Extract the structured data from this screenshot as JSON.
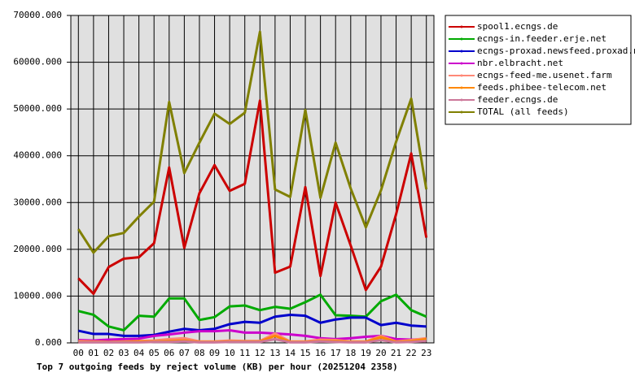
{
  "chart_data": {
    "type": "line",
    "title": "Top 7 outgoing feeds by reject volume (KB) per hour (20251204 2358)",
    "categories": [
      "00",
      "01",
      "02",
      "03",
      "04",
      "05",
      "06",
      "07",
      "08",
      "09",
      "10",
      "11",
      "12",
      "13",
      "14",
      "15",
      "16",
      "17",
      "18",
      "19",
      "20",
      "21",
      "22",
      "23"
    ],
    "ylim": [
      0,
      70000
    ],
    "yticks": [
      {
        "value": 0,
        "label": "0.000"
      },
      {
        "value": 10000,
        "label": "10000.000"
      },
      {
        "value": 20000,
        "label": "20000.000"
      },
      {
        "value": 30000,
        "label": "30000.000"
      },
      {
        "value": 40000,
        "label": "40000.000"
      },
      {
        "value": 50000,
        "label": "50000.000"
      },
      {
        "value": 60000,
        "label": "60000.000"
      },
      {
        "value": 70000,
        "label": "70000.000"
      }
    ],
    "grid": true,
    "series": [
      {
        "name": "spool1.ecngs.de",
        "color": "#cc0000",
        "values": [
          13800,
          10500,
          16200,
          18000,
          18300,
          21300,
          37500,
          20300,
          32000,
          38000,
          32500,
          34000,
          51800,
          15000,
          16300,
          33300,
          14300,
          30000,
          20800,
          11300,
          16300,
          27500,
          40500,
          22500
        ]
      },
      {
        "name": "ecngs-in.feeder.erje.net",
        "color": "#00aa00",
        "values": [
          6800,
          6000,
          3500,
          2700,
          5800,
          5600,
          9500,
          9500,
          4900,
          5500,
          7800,
          8000,
          7000,
          7700,
          7300,
          8700,
          10300,
          5900,
          5800,
          5600,
          8900,
          10300,
          7000,
          5600
        ]
      },
      {
        "name": "ecngs-proxad.newsfeed.proxad.net",
        "color": "#0000cc",
        "values": [
          2600,
          1900,
          1900,
          1500,
          1500,
          1700,
          2400,
          3000,
          2700,
          3000,
          4000,
          4500,
          4300,
          5600,
          6000,
          5800,
          4300,
          5000,
          5400,
          5400,
          3800,
          4300,
          3700,
          3500
        ]
      },
      {
        "name": "nbr.elbracht.net",
        "color": "#cc00cc",
        "values": [
          600,
          500,
          700,
          800,
          900,
          1500,
          1800,
          2200,
          2500,
          2500,
          2700,
          2200,
          2200,
          2000,
          1800,
          1500,
          1000,
          800,
          1000,
          1300,
          1500,
          800,
          700,
          800
        ]
      },
      {
        "name": "ecngs-feed-me.usenet.farm",
        "color": "#ff8877",
        "values": [
          400,
          300,
          200,
          300,
          400,
          500,
          800,
          1000,
          300,
          300,
          500,
          400,
          400,
          2000,
          300,
          300,
          700,
          600,
          300,
          300,
          1500,
          300,
          600,
          1000
        ]
      },
      {
        "name": "feeds.phibee-telecom.net",
        "color": "#ff8800",
        "values": [
          200,
          200,
          200,
          200,
          300,
          300,
          400,
          500,
          200,
          200,
          300,
          300,
          300,
          1500,
          200,
          200,
          400,
          400,
          200,
          200,
          1200,
          200,
          400,
          800
        ]
      },
      {
        "name": "feeder.ecngs.de",
        "color": "#cc7799",
        "values": [
          100,
          100,
          100,
          100,
          100,
          200,
          200,
          300,
          100,
          100,
          200,
          200,
          200,
          800,
          100,
          100,
          300,
          200,
          100,
          100,
          600,
          100,
          200,
          400
        ]
      },
      {
        "name": "TOTAL (all feeds)",
        "color": "#808000",
        "values": [
          24300,
          19300,
          22800,
          23500,
          27000,
          30200,
          51500,
          36300,
          42800,
          49000,
          46800,
          49200,
          66500,
          32800,
          31200,
          49800,
          31000,
          42800,
          33000,
          24700,
          32600,
          43000,
          52200,
          32800
        ]
      }
    ]
  }
}
